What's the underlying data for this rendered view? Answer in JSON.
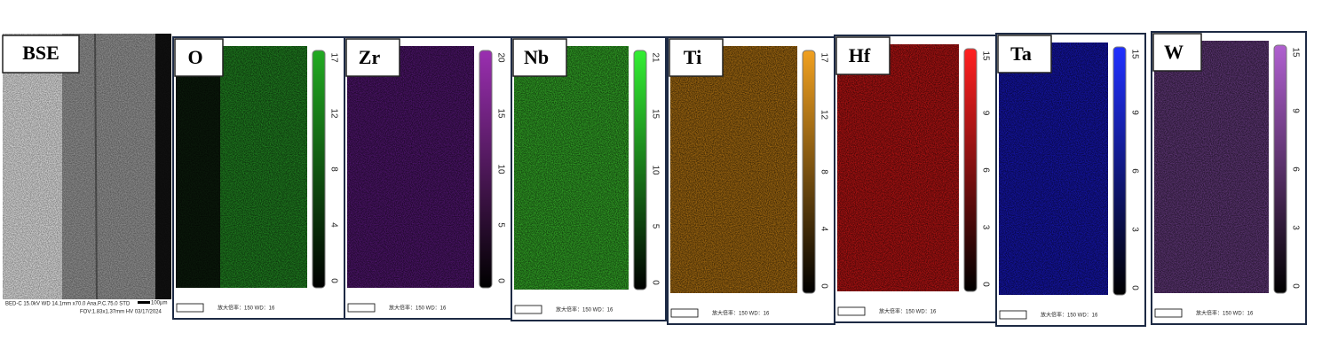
{
  "figure": {
    "bse": {
      "label": "BSE",
      "footer_line1": "BED-C  15.0kV WD 14.1mm  x70.0  Ana.P.C.75.0  STD",
      "footer_line2": "FOV:1.83x1.37mm    HV    03/17/2024",
      "scale_label": "100µm"
    },
    "maps": [
      {
        "label": "O",
        "color": "#1f7a1f",
        "bar_color": "#22aa22",
        "colorbar_ticks": [
          0,
          4,
          8,
          12,
          17
        ],
        "footer": "放大倍率：150    WD：16"
      },
      {
        "label": "Zr",
        "color": "#4a1466",
        "bar_color": "#9a2fb0",
        "colorbar_ticks": [
          0,
          5,
          10,
          15,
          20
        ],
        "footer": "放大倍率：150    WD：16"
      },
      {
        "label": "Nb",
        "color": "#2f9a24",
        "bar_color": "#33ee33",
        "colorbar_ticks": [
          0,
          5,
          10,
          15,
          21
        ],
        "footer": "放大倍率：150    WD：16"
      },
      {
        "label": "Ti",
        "color": "#9a6410",
        "bar_color": "#f0a020",
        "colorbar_ticks": [
          0,
          4,
          8,
          12,
          17
        ],
        "footer": "放大倍率：150    WD：16"
      },
      {
        "label": "Hf",
        "color": "#a81212",
        "bar_color": "#ff2020",
        "colorbar_ticks": [
          0,
          3,
          6,
          9,
          15
        ],
        "footer": "放大倍率：150    WD：16"
      },
      {
        "label": "Ta",
        "color": "#1414a0",
        "bar_color": "#2030ff",
        "colorbar_ticks": [
          0,
          3,
          6,
          9,
          15
        ],
        "footer": "放大倍率：150    WD：16"
      },
      {
        "label": "W",
        "color": "#5a3470",
        "bar_color": "#b060d0",
        "colorbar_ticks": [
          0,
          3,
          6,
          9,
          15
        ],
        "footer": "放大倍率：150    WD：16"
      }
    ]
  }
}
